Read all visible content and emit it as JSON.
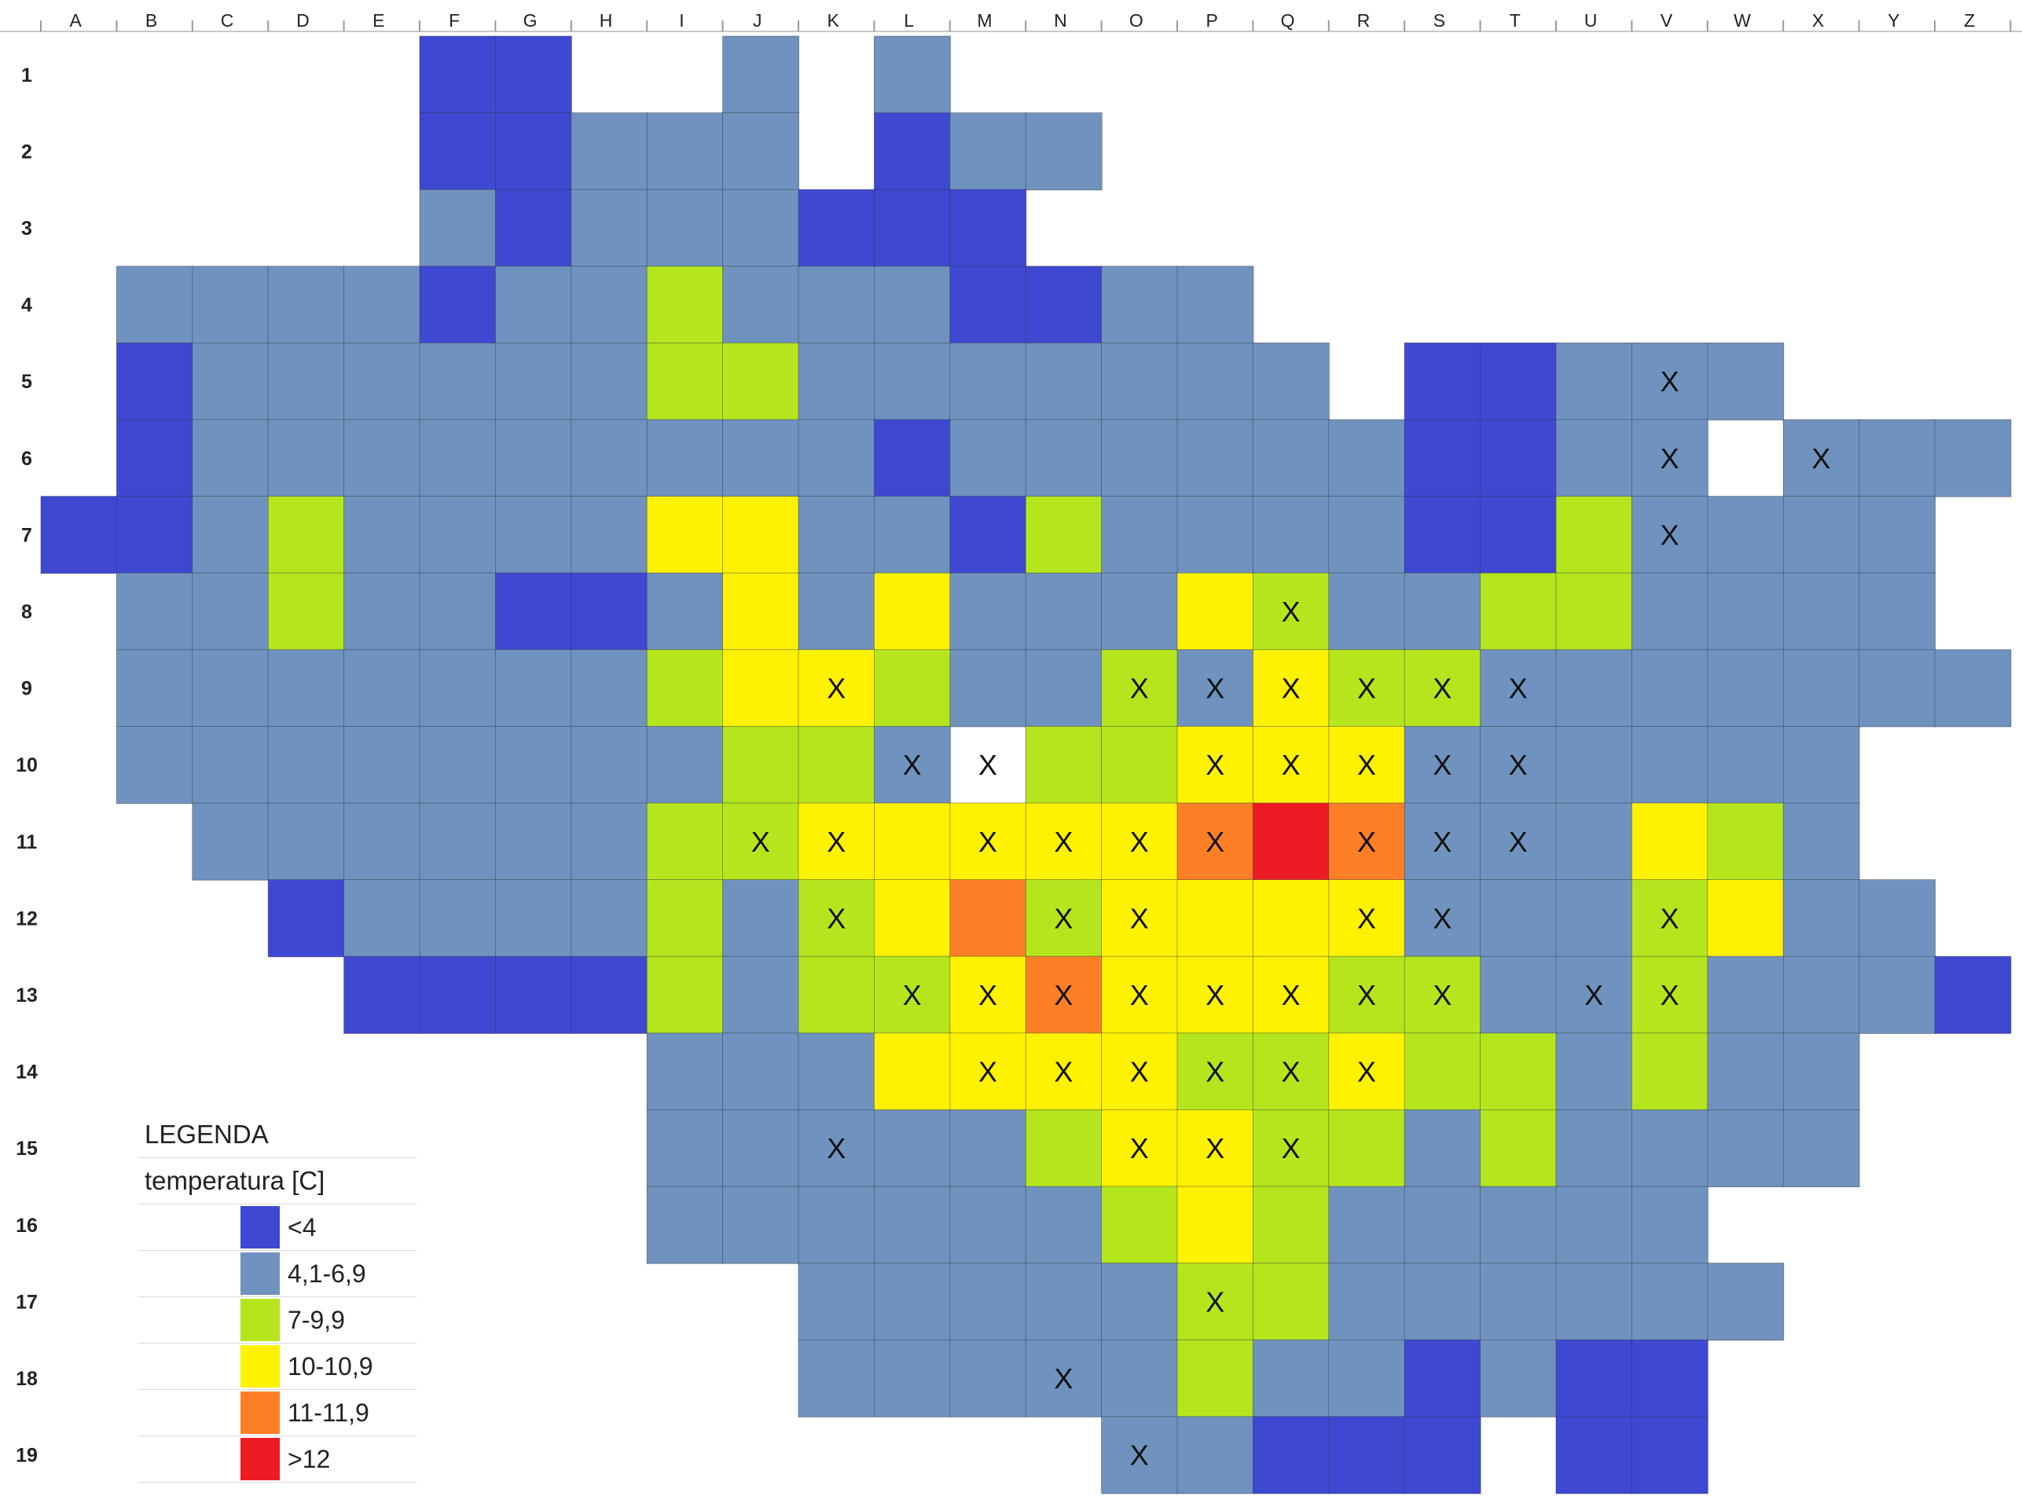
{
  "columns": [
    "A",
    "B",
    "C",
    "D",
    "E",
    "F",
    "G",
    "H",
    "I",
    "J",
    "K",
    "L",
    "M",
    "N",
    "O",
    "P",
    "Q",
    "R",
    "S",
    "T",
    "U",
    "V",
    "W",
    "X",
    "Y",
    "Z"
  ],
  "rows": [
    "1",
    "2",
    "3",
    "4",
    "5",
    "6",
    "7",
    "8",
    "9",
    "10",
    "11",
    "12",
    "13",
    "14",
    "15",
    "16",
    "17",
    "18",
    "19"
  ],
  "marker_symbol": "X",
  "palette": {
    "c1": "#3f48d1",
    "c2": "#7092be",
    "c3": "#b5e61d",
    "c4": "#fff200",
    "c5": "#ff7f27",
    "c6": "#ed1c24"
  },
  "grid": [
    "-----11--2L2--------------",
    "-----11--2L1M2---------------",
    "-----21--2-1L2--------------",
    "-222212-32-2111-222-----1--",
    "-12222-2-3322221222222-11222-",
    "-1222222222221222221-12222-",
    "112322222432212321121222-",
    "-2232211234412244222321223-",
    "-222222223X4XXXX4XX-4X4XX--",
    "-22222222332X3X3XXXXX2X2X22--",
    "--22222223X3X4XXXXXXXXXX22423-",
    "---112222232X344X6X5X44X4X2X-"
  ],
  "cells": [
    "-----11--2L2--------------",
    "-----11222L122------------",
    "-----21222111-------------",
    "-222212232221122----------",
    "-1222222332222222-11222---",
    "-122222222212222221122X222",
    "1123222244221322221132222-",
    "-223221124242224322332222-",
    "-2222222344322324332222222",
    "-22222222332X33444222222--",
    "--2222223344444565222432--",
    "---1222232345344442223422-",
    "----1111323345444332232221",
    "--------2224444334332322--",
    "--------2222234433232222--",
    "--------22222234322222----",
    "----------2222233222222---",
    "----------222223221211----",
    "--------------22111-11----"
  ],
  "markers": [
    "V5",
    "V6",
    "X6",
    "V7",
    "Q8",
    "K9",
    "O9",
    "P9",
    "Q9",
    "R9",
    "S9",
    "T9",
    "L10",
    "M10",
    "P10",
    "Q10",
    "R10",
    "S10",
    "T10",
    "J11",
    "K11",
    "M11",
    "N11",
    "O11",
    "P11",
    "R11",
    "S11",
    "T11",
    "K12",
    "N12",
    "O12",
    "R12",
    "S12",
    "V12",
    "L13",
    "M13",
    "N13",
    "O13",
    "P13",
    "Q13",
    "R13",
    "S13",
    "U13",
    "V13",
    "M14",
    "N14",
    "O14",
    "P14",
    "Q14",
    "R14",
    "K15",
    "O15",
    "P15",
    "Q15",
    "P17",
    "N18",
    "O19"
  ],
  "legend": {
    "title": "LEGENDA",
    "subtitle": "temperatura [C]",
    "items": [
      {
        "label": "<4",
        "color": "#3f48d1"
      },
      {
        "label": "4,1-6,9",
        "color": "#7092be"
      },
      {
        "label": "7-9,9",
        "color": "#b5e61d"
      },
      {
        "label": "10-10,9",
        "color": "#fff200"
      },
      {
        "label": "11-11,9",
        "color": "#ff7f27"
      },
      {
        "label": ">12",
        "color": "#ed1c24"
      }
    ]
  }
}
